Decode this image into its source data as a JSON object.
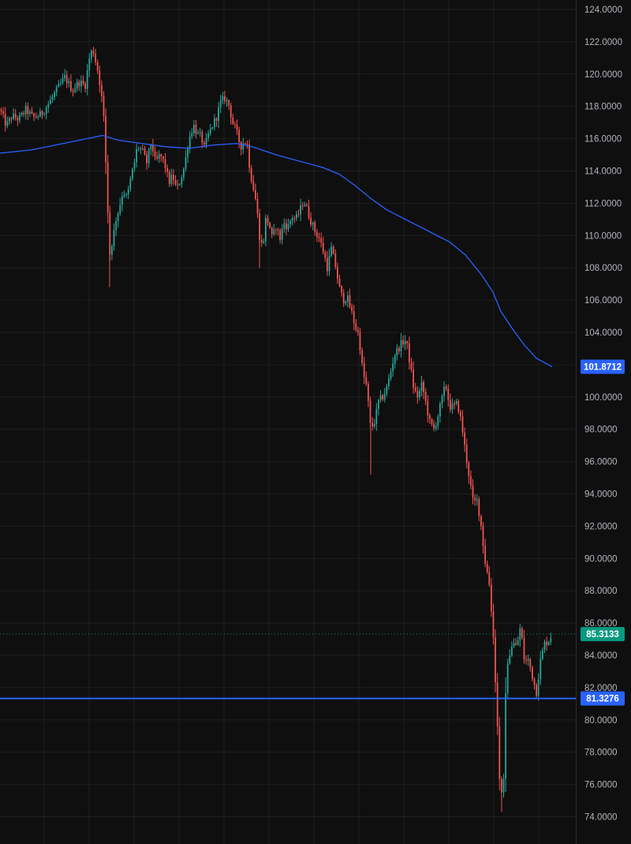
{
  "chart_data": {
    "type": "candlestick",
    "ylim": [
      73,
      125
    ],
    "y_ticks": [
      "124.0000",
      "122.0000",
      "120.0000",
      "118.0000",
      "116.0000",
      "114.0000",
      "112.0000",
      "110.0000",
      "108.0000",
      "106.0000",
      "104.0000",
      "102.0000",
      "100.0000",
      "98.0000",
      "96.0000",
      "94.0000",
      "92.0000",
      "90.0000",
      "88.0000",
      "86.0000",
      "84.0000",
      "82.0000",
      "80.0000",
      "78.0000",
      "76.0000",
      "74.0000"
    ],
    "grid": true,
    "colors": {
      "background": "#0f0f0f",
      "grid": "#1f1f1f",
      "up": "#26a69a",
      "down": "#ef5350",
      "ma": "#2962ff",
      "axis_text": "#b2b5be",
      "horizontal_line": "#2962ff",
      "last_price": "#089981"
    },
    "close_path": [
      [
        0,
        117.8
      ],
      [
        8,
        116.8
      ],
      [
        15,
        117.4
      ],
      [
        24,
        117.2
      ],
      [
        33,
        117.8
      ],
      [
        42,
        117.3
      ],
      [
        52,
        117.5
      ],
      [
        62,
        118.2
      ],
      [
        72,
        119.0
      ],
      [
        82,
        119.8
      ],
      [
        92,
        119.0
      ],
      [
        100,
        119.5
      ],
      [
        108,
        119.3
      ],
      [
        114,
        121.2
      ],
      [
        118,
        121.5
      ],
      [
        124,
        120.2
      ],
      [
        128,
        119.0
      ],
      [
        132,
        117.0
      ],
      [
        135,
        113.5
      ],
      [
        139,
        108.8
      ],
      [
        143,
        109.8
      ],
      [
        147,
        111.0
      ],
      [
        151,
        111.7
      ],
      [
        156,
        112.8
      ],
      [
        161,
        112.3
      ],
      [
        166,
        113.6
      ],
      [
        170,
        114.4
      ],
      [
        174,
        115.5
      ],
      [
        180,
        115.3
      ],
      [
        186,
        114.5
      ],
      [
        192,
        115.8
      ],
      [
        197,
        114.5
      ],
      [
        203,
        115.0
      ],
      [
        209,
        114.4
      ],
      [
        214,
        113.3
      ],
      [
        219,
        113.7
      ],
      [
        224,
        112.8
      ],
      [
        229,
        113.5
      ],
      [
        234,
        114.3
      ],
      [
        238,
        115.6
      ],
      [
        242,
        116.4
      ],
      [
        246,
        116.8
      ],
      [
        250,
        116.3
      ],
      [
        255,
        116.1
      ],
      [
        259,
        115.4
      ],
      [
        264,
        116.2
      ],
      [
        270,
        116.9
      ],
      [
        275,
        117.4
      ],
      [
        280,
        118.3
      ],
      [
        285,
        118.5
      ],
      [
        290,
        118.1
      ],
      [
        295,
        117.0
      ],
      [
        300,
        116.4
      ],
      [
        305,
        115.5
      ],
      [
        309,
        115.8
      ],
      [
        313,
        115.8
      ],
      [
        317,
        114.0
      ],
      [
        321,
        113.0
      ],
      [
        325,
        112.0
      ],
      [
        329,
        110.0
      ],
      [
        333,
        109.2
      ],
      [
        337,
        111.0
      ],
      [
        341,
        110.8
      ],
      [
        345,
        109.8
      ],
      [
        350,
        110.6
      ],
      [
        355,
        109.8
      ],
      [
        360,
        110.8
      ],
      [
        365,
        110.5
      ],
      [
        370,
        111.2
      ],
      [
        375,
        111.0
      ],
      [
        380,
        111.5
      ],
      [
        385,
        112.2
      ],
      [
        390,
        111.5
      ],
      [
        395,
        110.8
      ],
      [
        400,
        110.2
      ],
      [
        405,
        109.8
      ],
      [
        410,
        109.0
      ],
      [
        415,
        108.0
      ],
      [
        420,
        109.2
      ],
      [
        425,
        108.2
      ],
      [
        430,
        106.8
      ],
      [
        435,
        106.0
      ],
      [
        440,
        106.2
      ],
      [
        445,
        105.4
      ],
      [
        450,
        104.4
      ],
      [
        455,
        103.8
      ],
      [
        460,
        101.5
      ],
      [
        465,
        100.6
      ],
      [
        470,
        98.0
      ],
      [
        475,
        98.5
      ],
      [
        480,
        99.7
      ],
      [
        485,
        100.0
      ],
      [
        490,
        100.5
      ],
      [
        495,
        101.5
      ],
      [
        500,
        102.6
      ],
      [
        505,
        103.0
      ],
      [
        510,
        103.4
      ],
      [
        515,
        103.5
      ],
      [
        520,
        102.0
      ],
      [
        525,
        100.4
      ],
      [
        530,
        100.0
      ],
      [
        535,
        100.8
      ],
      [
        540,
        99.6
      ],
      [
        545,
        98.4
      ],
      [
        550,
        98.0
      ],
      [
        555,
        98.8
      ],
      [
        560,
        99.8
      ],
      [
        565,
        100.8
      ],
      [
        570,
        99.4
      ],
      [
        575,
        99.4
      ],
      [
        580,
        99.6
      ],
      [
        585,
        98.4
      ],
      [
        590,
        96.6
      ],
      [
        595,
        95.0
      ],
      [
        600,
        93.4
      ],
      [
        605,
        93.6
      ],
      [
        610,
        92.0
      ],
      [
        615,
        89.8
      ],
      [
        620,
        88.6
      ],
      [
        625,
        85.6
      ],
      [
        628,
        82.6
      ],
      [
        631,
        79.2
      ],
      [
        634,
        75.6
      ],
      [
        638,
        75.0
      ],
      [
        641,
        81.8
      ],
      [
        645,
        84.0
      ],
      [
        650,
        84.8
      ],
      [
        655,
        84.5
      ],
      [
        660,
        85.8
      ],
      [
        665,
        83.6
      ],
      [
        670,
        83.7
      ],
      [
        675,
        82.7
      ],
      [
        680,
        81.7
      ],
      [
        685,
        83.6
      ],
      [
        690,
        84.7
      ],
      [
        695,
        84.9
      ],
      [
        700,
        85.3
      ]
    ],
    "moving_average": [
      [
        0,
        115.1
      ],
      [
        40,
        115.3
      ],
      [
        80,
        115.7
      ],
      [
        110,
        116.0
      ],
      [
        130,
        116.2
      ],
      [
        150,
        115.9
      ],
      [
        180,
        115.7
      ],
      [
        210,
        115.5
      ],
      [
        240,
        115.4
      ],
      [
        270,
        115.6
      ],
      [
        300,
        115.7
      ],
      [
        320,
        115.5
      ],
      [
        350,
        115.0
      ],
      [
        380,
        114.6
      ],
      [
        410,
        114.2
      ],
      [
        430,
        113.8
      ],
      [
        450,
        113.1
      ],
      [
        470,
        112.3
      ],
      [
        490,
        111.6
      ],
      [
        510,
        111.1
      ],
      [
        530,
        110.6
      ],
      [
        550,
        110.1
      ],
      [
        570,
        109.6
      ],
      [
        590,
        108.8
      ],
      [
        610,
        107.6
      ],
      [
        625,
        106.5
      ],
      [
        635,
        105.3
      ],
      [
        650,
        104.2
      ],
      [
        665,
        103.2
      ],
      [
        680,
        102.4
      ],
      [
        700,
        101.87
      ]
    ],
    "horizontal_line": {
      "value": 81.3276,
      "label": "81.3276"
    },
    "ma_last": {
      "value": 101.8712,
      "label": "101.8712"
    },
    "last_price": {
      "value": 85.3133,
      "label": "85.3133"
    }
  }
}
